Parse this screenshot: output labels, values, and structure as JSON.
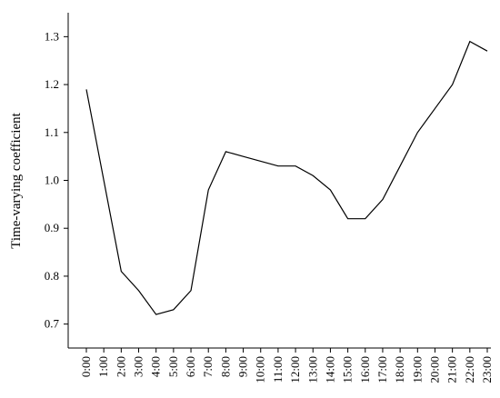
{
  "chart_data": {
    "type": "line",
    "y_label": "Time-varying coefficient",
    "categories": [
      "0:00",
      "1:00",
      "2:00",
      "3:00",
      "4:00",
      "5:00",
      "6:00",
      "7:00",
      "8:00",
      "9:00",
      "10:00",
      "11:00",
      "12:00",
      "13:00",
      "14:00",
      "15:00",
      "16:00",
      "17:00",
      "18:00",
      "19:00",
      "20:00",
      "21:00",
      "22:00",
      "23:00"
    ],
    "values": [
      1.19,
      1.0,
      0.81,
      0.77,
      0.72,
      0.73,
      0.77,
      0.98,
      1.06,
      1.05,
      1.04,
      1.03,
      1.03,
      1.01,
      0.98,
      0.92,
      0.92,
      0.96,
      1.03,
      1.1,
      1.15,
      1.2,
      1.29,
      1.27
    ],
    "color": "#000000",
    "ylim": [
      0.65,
      1.35
    ],
    "yticks": [
      0.7,
      0.8,
      0.9,
      {
        "value": 1,
        "label": "1.0"
      },
      1.1,
      1.2,
      1.3
    ]
  }
}
